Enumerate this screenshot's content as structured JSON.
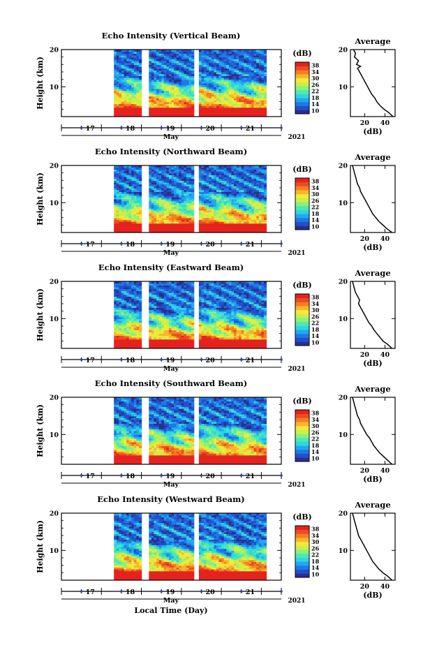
{
  "figure": {
    "xlabel": "Local Time (Day)"
  },
  "common": {
    "ylabel": "Height (km)",
    "y_ticks": [
      "20",
      "10"
    ],
    "day_ticks": [
      "17",
      "18",
      "19",
      "20",
      "21"
    ],
    "month_label": "May",
    "year_label": "2021",
    "colorbar_unit": "(dB)",
    "colorbar_ticks": [
      "38",
      "34",
      "30",
      "26",
      "22",
      "18",
      "14",
      "10"
    ],
    "colorbar_colors": [
      "#2b2f8f",
      "#2350c8",
      "#1e78e8",
      "#22a8f0",
      "#2dd6e0",
      "#4fe8b0",
      "#8cf07a",
      "#c8f048",
      "#f5e83a",
      "#f7b52b",
      "#f57f22",
      "#ee4b20",
      "#e5221f"
    ],
    "avg_title": "Average",
    "avg_xlabel": "(dB)"
  },
  "chart_data": [
    {
      "type": "heatmap",
      "title": "Echo Intensity (Vertical Beam)",
      "ylabel": "Height (km)",
      "ylim": [
        2,
        20
      ],
      "xlim": [
        "2021-05-16 00:00",
        "2021-05-21 12:00"
      ],
      "data_gaps": [
        [
          "2021-05-16 00:00",
          "2021-05-17 07:00"
        ],
        [
          "2021-05-18 00:00",
          "2021-05-18 04:00"
        ],
        [
          "2021-05-19 07:00",
          "2021-05-19 11:00"
        ],
        [
          "2021-05-21 03:00",
          "2021-05-21 12:00"
        ]
      ],
      "clim": [
        10,
        38
      ],
      "average_profile": {
        "title": "Average",
        "xlabel": "(dB)",
        "x_ticks": [
          "20",
          "40"
        ],
        "xlim": [
          6,
          50
        ],
        "ylim": [
          2,
          20
        ],
        "height_km": [
          2,
          3,
          4,
          5,
          6,
          7,
          8,
          9,
          10,
          11,
          12,
          13,
          14,
          15,
          15.5,
          16,
          17,
          18,
          19,
          20
        ],
        "intensity_db": [
          48,
          44,
          39,
          35,
          32,
          30,
          27,
          25,
          23,
          21,
          19,
          17,
          15,
          13,
          16,
          12,
          14,
          10,
          11,
          9
        ]
      }
    },
    {
      "type": "heatmap",
      "title": "Echo Intensity (Northward Beam)",
      "ylabel": "Height (km)",
      "ylim": [
        2,
        20
      ],
      "xlim": [
        "2021-05-16 00:00",
        "2021-05-21 12:00"
      ],
      "data_gaps": [
        [
          "2021-05-16 00:00",
          "2021-05-17 07:00"
        ],
        [
          "2021-05-18 00:00",
          "2021-05-18 04:00"
        ],
        [
          "2021-05-19 07:00",
          "2021-05-19 11:00"
        ],
        [
          "2021-05-21 03:00",
          "2021-05-21 12:00"
        ]
      ],
      "clim": [
        10,
        38
      ],
      "average_profile": {
        "title": "Average",
        "xlabel": "(dB)",
        "x_ticks": [
          "20",
          "40"
        ],
        "xlim": [
          6,
          50
        ],
        "ylim": [
          2,
          20
        ],
        "height_km": [
          2,
          3,
          4,
          5,
          6,
          7,
          8,
          9,
          10,
          11,
          12,
          13,
          14,
          15,
          16,
          17,
          18,
          19,
          20
        ],
        "intensity_db": [
          47,
          42,
          38,
          34,
          31,
          28,
          26,
          24,
          22,
          20,
          18,
          16,
          15,
          13,
          12,
          11,
          10,
          9,
          8
        ]
      }
    },
    {
      "type": "heatmap",
      "title": "Echo Intensity (Eastward Beam)",
      "ylabel": "Height (km)",
      "ylim": [
        2,
        20
      ],
      "xlim": [
        "2021-05-16 00:00",
        "2021-05-21 12:00"
      ],
      "data_gaps": [
        [
          "2021-05-16 00:00",
          "2021-05-17 07:00"
        ],
        [
          "2021-05-18 00:00",
          "2021-05-18 04:00"
        ],
        [
          "2021-05-19 07:00",
          "2021-05-19 11:00"
        ],
        [
          "2021-05-21 03:00",
          "2021-05-21 12:00"
        ]
      ],
      "clim": [
        10,
        38
      ],
      "average_profile": {
        "title": "Average",
        "xlabel": "(dB)",
        "x_ticks": [
          "20",
          "40"
        ],
        "xlim": [
          6,
          50
        ],
        "ylim": [
          2,
          20
        ],
        "height_km": [
          2,
          3,
          4,
          5,
          6,
          7,
          8,
          9,
          10,
          11,
          12,
          13,
          14,
          15,
          16,
          17,
          18,
          19,
          20
        ],
        "intensity_db": [
          47,
          43,
          38,
          35,
          32,
          29,
          27,
          24,
          22,
          20,
          18,
          16,
          14,
          15,
          13,
          11,
          10,
          9,
          8
        ]
      }
    },
    {
      "type": "heatmap",
      "title": "Echo Intensity (Southward Beam)",
      "ylabel": "Height (km)",
      "ylim": [
        2,
        20
      ],
      "xlim": [
        "2021-05-16 00:00",
        "2021-05-21 12:00"
      ],
      "data_gaps": [
        [
          "2021-05-16 00:00",
          "2021-05-17 07:00"
        ],
        [
          "2021-05-18 00:00",
          "2021-05-18 04:00"
        ],
        [
          "2021-05-19 07:00",
          "2021-05-19 11:00"
        ],
        [
          "2021-05-21 03:00",
          "2021-05-21 12:00"
        ]
      ],
      "clim": [
        10,
        38
      ],
      "average_profile": {
        "title": "Average",
        "xlabel": "(dB)",
        "x_ticks": [
          "20",
          "40"
        ],
        "xlim": [
          6,
          50
        ],
        "ylim": [
          2,
          20
        ],
        "height_km": [
          2,
          3,
          4,
          5,
          6,
          7,
          8,
          9,
          10,
          11,
          12,
          13,
          14,
          15,
          16,
          17,
          18,
          19,
          20
        ],
        "intensity_db": [
          47,
          43,
          39,
          35,
          32,
          29,
          27,
          25,
          22,
          20,
          18,
          16,
          15,
          13,
          12,
          11,
          10,
          9,
          8
        ]
      }
    },
    {
      "type": "heatmap",
      "title": "Echo Intensity (Westward Beam)",
      "ylabel": "Height (km)",
      "ylim": [
        2,
        20
      ],
      "xlim": [
        "2021-05-16 00:00",
        "2021-05-21 12:00"
      ],
      "data_gaps": [
        [
          "2021-05-16 00:00",
          "2021-05-17 07:00"
        ],
        [
          "2021-05-18 00:00",
          "2021-05-18 04:00"
        ],
        [
          "2021-05-19 07:00",
          "2021-05-19 11:00"
        ],
        [
          "2021-05-21 03:00",
          "2021-05-21 12:00"
        ]
      ],
      "clim": [
        10,
        38
      ],
      "average_profile": {
        "title": "Average",
        "xlabel": "(dB)",
        "x_ticks": [
          "20",
          "40"
        ],
        "xlim": [
          6,
          50
        ],
        "ylim": [
          2,
          20
        ],
        "height_km": [
          2,
          3,
          4,
          5,
          6,
          7,
          8,
          9,
          10,
          11,
          12,
          13,
          14,
          15,
          16,
          17,
          18,
          19,
          20
        ],
        "intensity_db": [
          47,
          43,
          38,
          34,
          31,
          28,
          26,
          24,
          22,
          20,
          18,
          16,
          14,
          13,
          12,
          11,
          10,
          9,
          8
        ]
      }
    }
  ]
}
